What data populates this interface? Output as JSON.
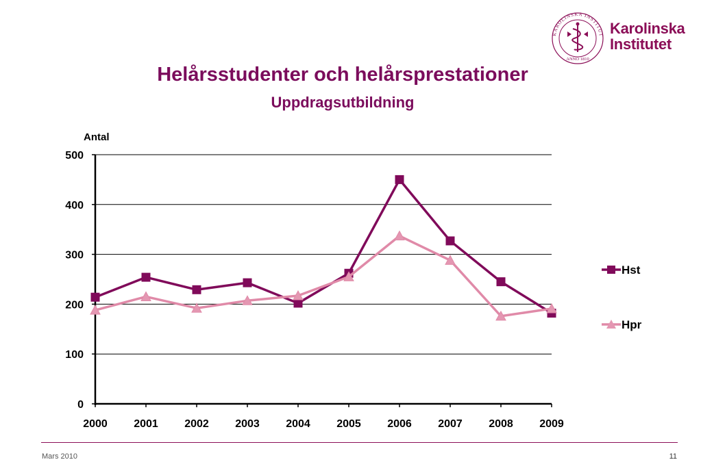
{
  "header": {
    "title": "Helårsstudenter och helårsprestationer",
    "subtitle": "Uppdragsutbildning"
  },
  "logo": {
    "line1": "Karolinska",
    "line2": "Institutet",
    "seal_text": "KAROLINSKA INSTITUTET · ANNO 1810"
  },
  "footer": {
    "date": "Mars 2010",
    "page_number": "11"
  },
  "colors": {
    "brand": "#8b0e57",
    "hst": "#800a5a",
    "hpr": "#e08aa8",
    "hpr_marker": "#e497b2"
  },
  "chart_data": {
    "type": "line",
    "ylabel": "Antal",
    "xlabel": "",
    "categories": [
      "2000",
      "2001",
      "2002",
      "2003",
      "2004",
      "2005",
      "2006",
      "2007",
      "2008",
      "2009"
    ],
    "ylim": [
      0,
      500
    ],
    "yticks": [
      "0",
      "100",
      "200",
      "300",
      "400",
      "500"
    ],
    "grid": true,
    "legend_position": "right",
    "series": [
      {
        "name": "Hst",
        "marker": "square",
        "values": [
          214,
          254,
          229,
          243,
          202,
          262,
          450,
          327,
          245,
          182
        ]
      },
      {
        "name": "Hpr",
        "marker": "triangle",
        "values": [
          188,
          215,
          192,
          207,
          217,
          255,
          337,
          288,
          176,
          191
        ]
      }
    ]
  }
}
